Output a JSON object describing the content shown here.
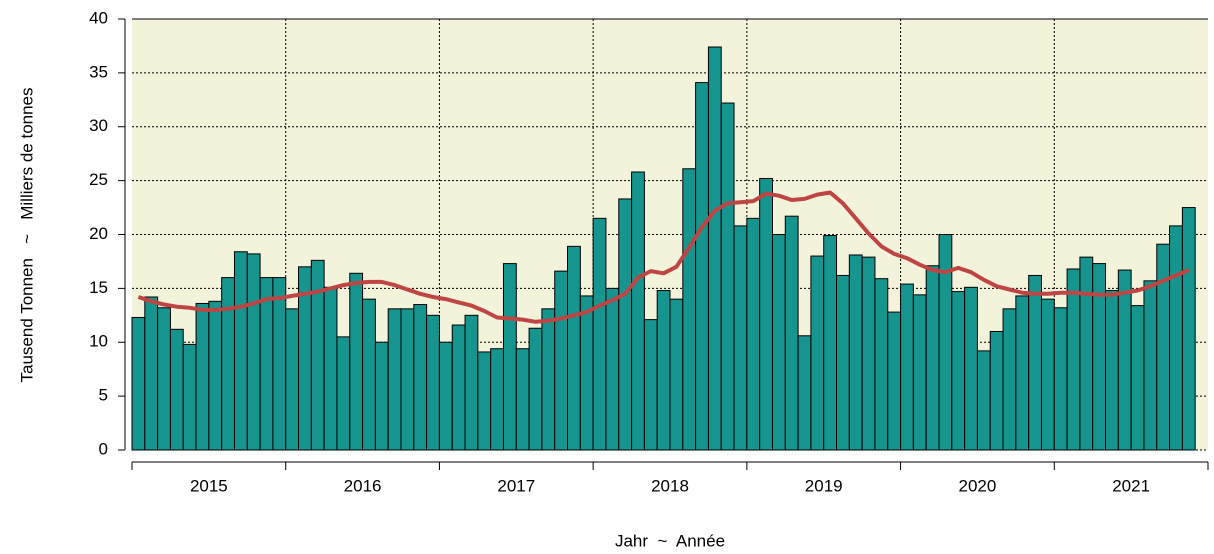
{
  "chart_data": {
    "type": "bar",
    "y_label": "Tausend Tonnen   ~   Milliers de tonnes",
    "x_label": "Jahr  ~  Année",
    "years": [
      "2015",
      "2016",
      "2017",
      "2018",
      "2019",
      "2020",
      "2021"
    ],
    "ylim": [
      0,
      40
    ],
    "yticks": [
      0,
      5,
      10,
      15,
      20,
      25,
      30,
      35,
      40
    ],
    "grid": true,
    "background": "#f3f3dc",
    "series": [
      {
        "type": "bar",
        "color": "#16958f",
        "values": [
          12.3,
          14.2,
          13.2,
          11.2,
          9.8,
          13.6,
          13.8,
          16.0,
          18.4,
          18.2,
          16.0,
          16.0,
          13.1,
          17.0,
          17.6,
          15.1,
          10.5,
          16.4,
          14.0,
          10.0,
          13.1,
          13.1,
          13.5,
          12.5,
          10.0,
          11.6,
          12.5,
          9.1,
          9.4,
          17.3,
          9.4,
          11.3,
          13.1,
          16.6,
          18.9,
          14.3,
          21.5,
          15.0,
          23.3,
          25.8,
          12.1,
          14.8,
          14.0,
          26.1,
          34.1,
          37.4,
          32.2,
          20.8,
          21.5,
          25.2,
          20.0,
          21.7,
          10.6,
          18.0,
          19.9,
          16.2,
          18.1,
          17.9,
          15.9,
          12.8,
          15.4,
          14.4,
          17.1,
          20.0,
          14.7,
          15.1,
          9.2,
          11.0,
          13.1,
          14.3,
          16.2,
          14.0,
          13.2,
          16.8,
          17.9,
          17.3,
          14.8,
          16.7,
          13.4,
          15.7,
          19.1,
          20.8,
          22.5
        ]
      },
      {
        "type": "line",
        "color": "#bf4444",
        "values": [
          14.2,
          13.8,
          13.5,
          13.3,
          13.2,
          13.0,
          13.0,
          13.1,
          13.3,
          13.6,
          14.0,
          14.1,
          14.3,
          14.5,
          14.7,
          15.0,
          15.3,
          15.5,
          15.6,
          15.6,
          15.3,
          14.9,
          14.5,
          14.2,
          14.0,
          13.7,
          13.4,
          12.9,
          12.3,
          12.2,
          12.1,
          11.9,
          12.0,
          12.2,
          12.5,
          12.8,
          13.4,
          13.9,
          14.5,
          16.0,
          16.6,
          16.4,
          17.0,
          18.8,
          20.7,
          22.2,
          22.9,
          23.0,
          23.1,
          23.8,
          23.6,
          23.2,
          23.3,
          23.7,
          23.9,
          22.9,
          21.5,
          20.1,
          18.9,
          18.2,
          17.8,
          17.2,
          16.7,
          16.5,
          16.9,
          16.5,
          15.8,
          15.2,
          14.9,
          14.6,
          14.5,
          14.5,
          14.6,
          14.6,
          14.5,
          14.4,
          14.4,
          14.6,
          14.8,
          15.2,
          15.7,
          16.2,
          16.7
        ]
      }
    ]
  }
}
